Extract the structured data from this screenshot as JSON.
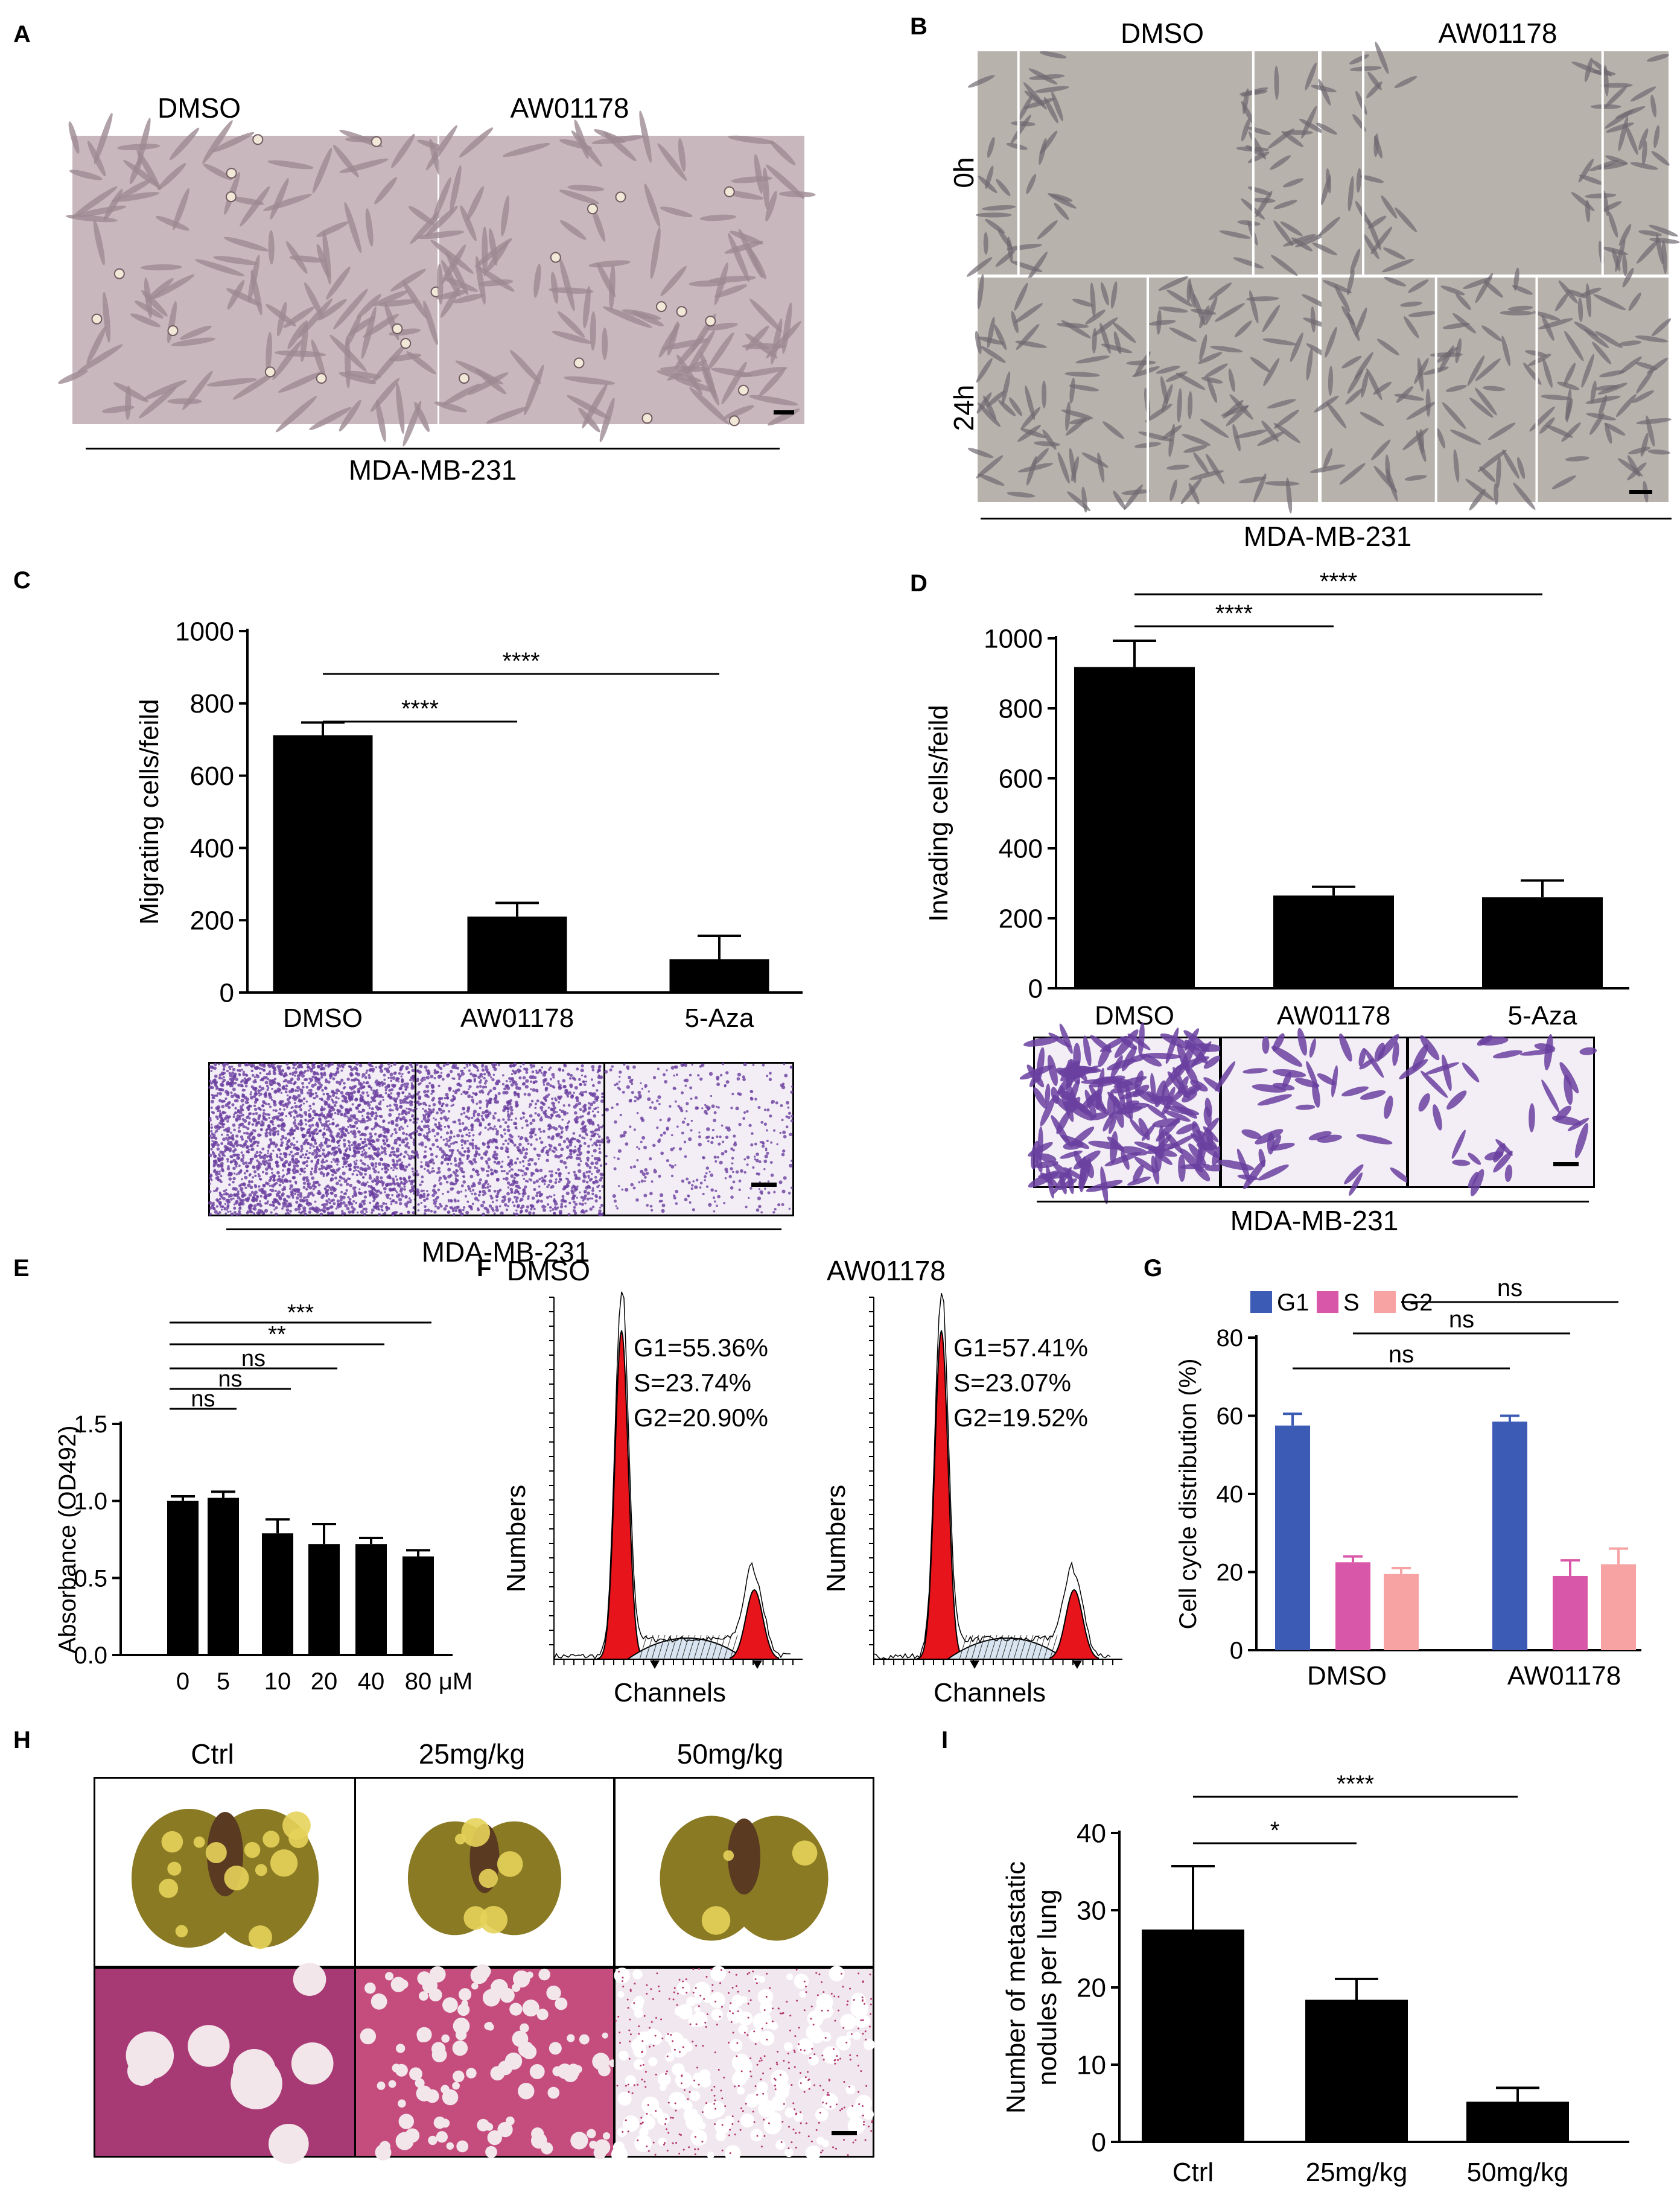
{
  "panels": {
    "A": {
      "label": "A",
      "captions": [
        "DMSO",
        "AW01178"
      ],
      "cell_line": "MDA-MB-231"
    },
    "B": {
      "label": "B",
      "captions": [
        "DMSO",
        "AW01178"
      ],
      "rows": [
        "0h",
        "24h"
      ],
      "cell_line": "MDA-MB-231"
    },
    "C": {
      "label": "C",
      "cell_line": "MDA-MB-231"
    },
    "D": {
      "label": "D",
      "cell_line": "MDA-MB-231"
    },
    "E": {
      "label": "E"
    },
    "F": {
      "label": "F",
      "histograms": [
        {
          "title": "DMSO",
          "stats": [
            "G1=55.36%",
            "S=23.74%",
            "G2=20.90%"
          ],
          "ylabel": "Numbers",
          "xlabel": "Channels"
        },
        {
          "title": "AW01178",
          "stats": [
            "G1=57.41%",
            "S=23.07%",
            "G2=19.52%"
          ],
          "ylabel": "Numbers",
          "xlabel": "Channels"
        }
      ]
    },
    "G": {
      "label": "G"
    },
    "H": {
      "label": "H",
      "captions": [
        "Ctrl",
        "25mg/kg",
        "50mg/kg"
      ]
    },
    "I": {
      "label": "I"
    }
  },
  "colors": {
    "bar": "#000000",
    "G1": "#3b5bb5",
    "S": "#d957a8",
    "G2": "#f7a3a3",
    "histogram_fill": "#e8141b",
    "stain": "#6a3fa0",
    "phase_bg": "#c8b7bd",
    "lung": "#8a7a24",
    "he_stain": "#b4366f"
  },
  "chart_data": [
    {
      "id": "C",
      "type": "bar",
      "categories": [
        "DMSO",
        "AW01178",
        "5-Aza"
      ],
      "values": [
        712,
        210,
        92
      ],
      "errors": [
        35,
        38,
        65
      ],
      "ylabel": "Migrating cells/feild",
      "ylim": [
        0,
        1000
      ],
      "yticks": [
        "0",
        "200",
        "400",
        "600",
        "800",
        "1000"
      ],
      "significance": [
        {
          "from": 0,
          "to": 1,
          "label": "****"
        },
        {
          "from": 0,
          "to": 2,
          "label": "****"
        }
      ]
    },
    {
      "id": "D",
      "type": "bar",
      "categories": [
        "DMSO",
        "AW01178",
        "5-Aza"
      ],
      "values": [
        918,
        265,
        260
      ],
      "errors": [
        75,
        25,
        48
      ],
      "ylabel": "Invading cells/feild",
      "ylim": [
        0,
        1000
      ],
      "yticks": [
        "0",
        "200",
        "400",
        "600",
        "800",
        "1000"
      ],
      "significance": [
        {
          "from": 0,
          "to": 1,
          "label": "****"
        },
        {
          "from": 0,
          "to": 2,
          "label": "****"
        }
      ]
    },
    {
      "id": "E",
      "type": "bar",
      "categories": [
        "0",
        "5",
        "10",
        "20",
        "40",
        "80"
      ],
      "unit": "μM",
      "values": [
        1.0,
        1.02,
        0.79,
        0.72,
        0.72,
        0.64
      ],
      "errors": [
        0.03,
        0.04,
        0.09,
        0.13,
        0.04,
        0.04
      ],
      "ylabel": "Absorbance (OD492)",
      "ylim": [
        0,
        1.5
      ],
      "yticks": [
        "0.0",
        "0.5",
        "1.0",
        "1.5"
      ],
      "significance": [
        {
          "from": 0,
          "to": 1,
          "label": "ns"
        },
        {
          "from": 0,
          "to": 2,
          "label": "ns"
        },
        {
          "from": 0,
          "to": 3,
          "label": "ns"
        },
        {
          "from": 0,
          "to": 4,
          "label": "**"
        },
        {
          "from": 0,
          "to": 5,
          "label": "***"
        }
      ]
    },
    {
      "id": "G",
      "type": "bar",
      "categories": [
        "DMSO",
        "AW01178"
      ],
      "series": [
        {
          "name": "G1",
          "values": [
            57.5,
            58.5
          ],
          "errors": [
            3.0,
            1.5
          ]
        },
        {
          "name": "S",
          "values": [
            22.5,
            19.0
          ],
          "errors": [
            1.5,
            4.0
          ]
        },
        {
          "name": "G2",
          "values": [
            19.5,
            22.0
          ],
          "errors": [
            1.5,
            4.0
          ]
        }
      ],
      "ylabel": "Cell cycle distribution (%)",
      "ylim": [
        0,
        80
      ],
      "yticks": [
        "0",
        "20",
        "40",
        "60",
        "80"
      ],
      "legend": "top-left",
      "significance": [
        {
          "label": "ns"
        },
        {
          "label": "ns"
        },
        {
          "label": "ns"
        }
      ]
    },
    {
      "id": "I",
      "type": "bar",
      "categories": [
        "Ctrl",
        "25mg/kg",
        "50mg/kg"
      ],
      "values": [
        27.5,
        18.4,
        5.2
      ],
      "errors": [
        8.2,
        2.7,
        1.8
      ],
      "ylabel": "Number of metastatic nodules per lung",
      "ylabel_lines": [
        "Number of metastatic",
        "nodules per lung"
      ],
      "ylim": [
        0,
        40
      ],
      "yticks": [
        "0",
        "10",
        "20",
        "30",
        "40"
      ],
      "significance": [
        {
          "from": 0,
          "to": 1,
          "label": "*"
        },
        {
          "from": 0,
          "to": 2,
          "label": "****"
        }
      ]
    }
  ]
}
